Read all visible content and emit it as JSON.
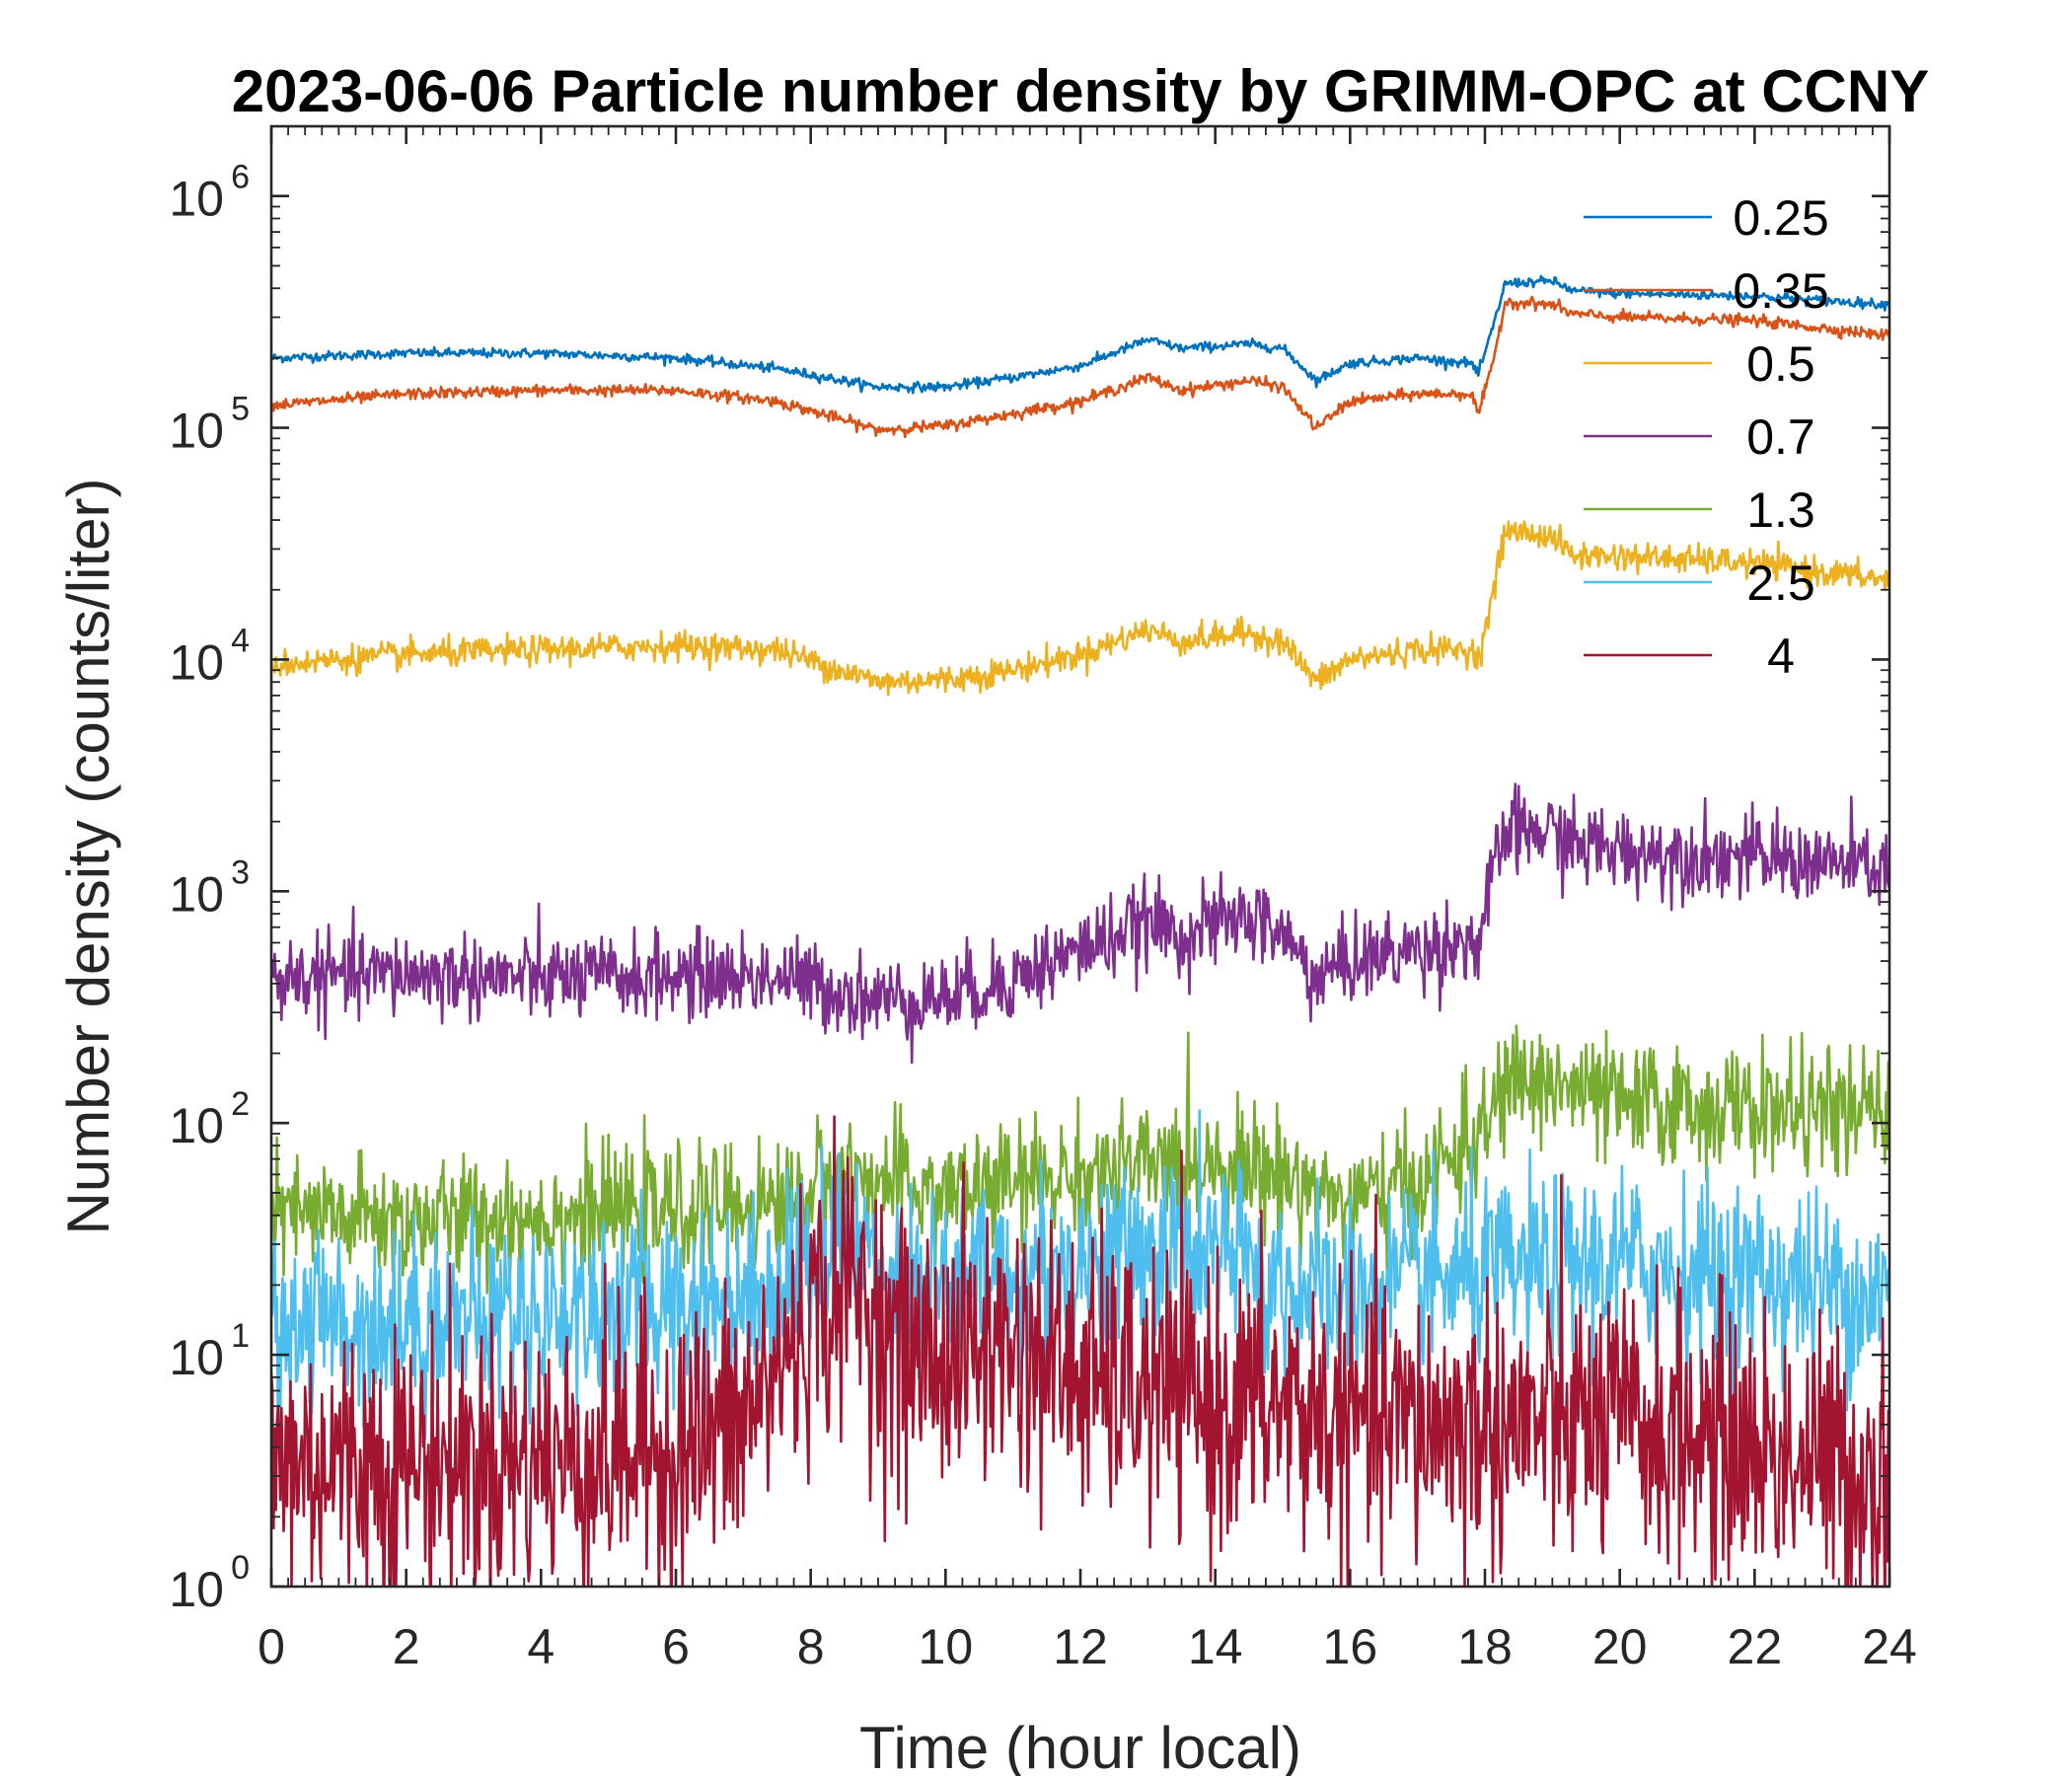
{
  "chart_data": {
    "type": "line",
    "title": "2023-06-06 Particle number density by GRIMM-OPC at CCNY",
    "xlabel": "Time (hour local)",
    "ylabel": "Number density (counts/liter)",
    "xlim": [
      0,
      24
    ],
    "ylim": [
      1,
      2000000
    ],
    "yscale": "log",
    "xticks": [
      0,
      2,
      4,
      6,
      8,
      10,
      12,
      14,
      16,
      18,
      20,
      22,
      24
    ],
    "xtick_labels": [
      "0",
      "2",
      "4",
      "6",
      "8",
      "10",
      "12",
      "14",
      "16",
      "18",
      "20",
      "22",
      "24"
    ],
    "yticks": [
      1,
      10,
      100,
      1000,
      10000,
      100000,
      1000000
    ],
    "ytick_labels": [
      {
        "base": "10",
        "exp": "0"
      },
      {
        "base": "10",
        "exp": "1"
      },
      {
        "base": "10",
        "exp": "2"
      },
      {
        "base": "10",
        "exp": "3"
      },
      {
        "base": "10",
        "exp": "4"
      },
      {
        "base": "10",
        "exp": "5"
      },
      {
        "base": "10",
        "exp": "6"
      }
    ],
    "legend_position": "top-right",
    "series": [
      {
        "name": "0.25",
        "color": "#0072BD",
        "noise": 0.01,
        "x": [
          0,
          2,
          4,
          6,
          7.5,
          9,
          10,
          11,
          12,
          13,
          13.5,
          14.5,
          15,
          15.5,
          16,
          17,
          17.8,
          17.9,
          18.1,
          18.3,
          19,
          19.3,
          20,
          22,
          24
        ],
        "y": [
          200000,
          210000,
          210000,
          200000,
          180000,
          150000,
          150000,
          165000,
          185000,
          240000,
          220000,
          230000,
          220000,
          160000,
          190000,
          200000,
          190000,
          170000,
          260000,
          420000,
          430000,
          390000,
          380000,
          370000,
          340000
        ]
      },
      {
        "name": "0.35",
        "color": "#D95319",
        "noise": 0.012,
        "x": [
          0,
          2,
          4,
          6,
          7.5,
          9,
          10,
          11,
          12,
          13,
          13.5,
          14.5,
          15,
          15.5,
          16,
          17,
          17.8,
          17.9,
          18.1,
          18.3,
          19,
          19.3,
          20,
          22,
          24
        ],
        "y": [
          125000,
          140000,
          145000,
          145000,
          130000,
          98000,
          102000,
          115000,
          130000,
          165000,
          145000,
          160000,
          150000,
          100000,
          130000,
          140000,
          140000,
          115000,
          180000,
          350000,
          340000,
          310000,
          300000,
          290000,
          250000
        ]
      },
      {
        "name": "0.5",
        "color": "#EDB120",
        "noise": 0.03,
        "x": [
          0,
          2,
          4,
          6,
          7.5,
          9,
          10,
          11,
          12,
          13,
          13.5,
          14.5,
          15,
          15.5,
          16,
          17,
          17.8,
          17.9,
          18.1,
          18.3,
          19,
          19.3,
          20,
          22,
          24
        ],
        "y": [
          9500,
          10500,
          11000,
          11500,
          11000,
          8000,
          8200,
          9000,
          10500,
          13500,
          12000,
          13000,
          12000,
          8000,
          10000,
          11000,
          11000,
          10000,
          18000,
          36000,
          34000,
          28000,
          28000,
          26000,
          22000
        ]
      },
      {
        "name": "0.7",
        "color": "#7E2F8E",
        "noise": 0.09,
        "x": [
          0,
          2,
          4,
          6,
          7.5,
          9,
          10,
          11,
          12,
          13,
          13.5,
          14.5,
          15,
          15.5,
          16,
          17,
          17.8,
          17.9,
          18.1,
          18.3,
          19,
          19.3,
          20,
          22,
          24
        ],
        "y": [
          420,
          440,
          420,
          430,
          430,
          340,
          350,
          420,
          560,
          730,
          650,
          780,
          650,
          420,
          500,
          560,
          620,
          560,
          1100,
          1800,
          1800,
          1600,
          1500,
          1400,
          1250
        ]
      },
      {
        "name": "1.3",
        "color": "#77AC30",
        "noise": 0.13,
        "x": [
          0,
          2,
          4,
          6,
          7.5,
          8.5,
          9,
          10,
          11,
          12,
          13,
          14,
          15,
          16,
          17,
          18,
          18.3,
          19,
          20,
          22,
          24
        ],
        "y": [
          40,
          38,
          40,
          42,
          45,
          60,
          55,
          50,
          55,
          60,
          65,
          70,
          60,
          45,
          55,
          90,
          150,
          150,
          120,
          115,
          110
        ]
      },
      {
        "name": "2.5",
        "color": "#4DBEEE",
        "noise": 0.2,
        "x": [
          0,
          2,
          4,
          6,
          7,
          8.5,
          9,
          10,
          11,
          12,
          13,
          14,
          15,
          16,
          17,
          18,
          20,
          22,
          24
        ],
        "y": [
          14,
          14,
          15,
          17,
          18,
          30,
          25,
          20,
          22,
          25,
          28,
          28,
          20,
          18,
          20,
          22,
          25,
          22,
          18
        ]
      },
      {
        "name": "4",
        "color": "#A2142F",
        "noise": 0.3,
        "x": [
          0,
          2,
          4,
          6,
          7,
          8,
          8.7,
          9.3,
          10,
          11,
          12,
          13,
          14,
          15,
          16,
          17,
          18,
          20,
          22,
          24
        ],
        "y": [
          3.5,
          3.5,
          3.5,
          4,
          5,
          15,
          20,
          10,
          10,
          11,
          8,
          7,
          6,
          6,
          5,
          5,
          5,
          5,
          4,
          3
        ]
      }
    ]
  }
}
